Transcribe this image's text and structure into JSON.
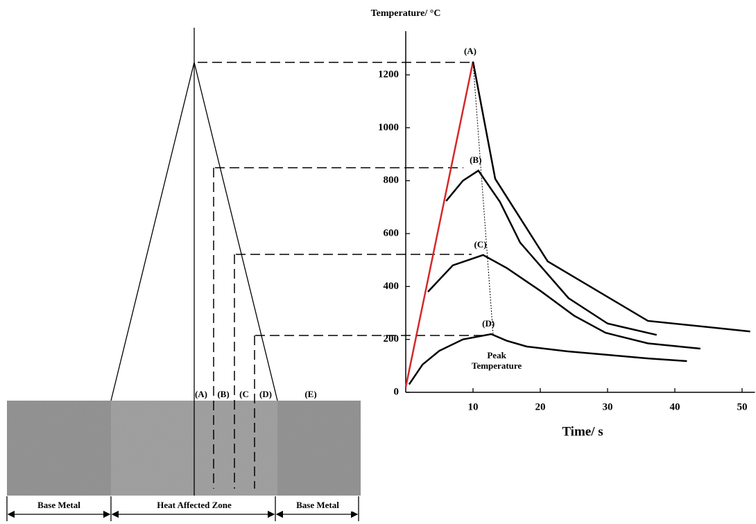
{
  "chart_data": {
    "type": "line",
    "ylabel": "Temperature/ °C",
    "xlabel": "Time/ s",
    "xlim": [
      0,
      51.5
    ],
    "ylim": [
      0,
      1365
    ],
    "xticks": [
      10,
      20,
      30,
      40,
      50
    ],
    "yticks": [
      0,
      200,
      400,
      600,
      800,
      1000,
      1200
    ],
    "heating_color": "#d62728",
    "series": [
      {
        "name": "(A)",
        "color": "#000000",
        "x": [
          0,
          10,
          13.3,
          21.1,
          36,
          51.2
        ],
        "values": [
          20,
          1250,
          807,
          495,
          270,
          230
        ]
      },
      {
        "name": "(B)",
        "color": "#000000",
        "x": [
          6,
          8.5,
          10.8,
          14,
          17,
          24.2,
          30,
          37.3
        ],
        "values": [
          723,
          800,
          838,
          720,
          566,
          356,
          260,
          217
        ]
      },
      {
        "name": "(C)",
        "color": "#000000",
        "x": [
          3.3,
          7,
          11.5,
          15,
          20.1,
          25,
          29.7,
          36,
          43.8
        ],
        "values": [
          380,
          480,
          519,
          470,
          382,
          290,
          225,
          185,
          165
        ]
      },
      {
        "name": "(D)",
        "color": "#000000",
        "x": [
          0.5,
          2.5,
          5,
          8.5,
          12.7,
          15,
          18,
          24,
          30.2,
          36,
          41.8
        ],
        "values": [
          30,
          105,
          157,
          200,
          220,
          195,
          173,
          155,
          141,
          128,
          118
        ]
      }
    ],
    "annotation": {
      "text": [
        "Peak",
        "Temperature"
      ],
      "x": [
        10,
        13
      ],
      "values": [
        1250,
        215
      ]
    }
  },
  "diagram": {
    "zone_marks": [
      "(A)",
      "(B)",
      "(C",
      "(D)",
      "(E)"
    ],
    "regions": [
      "Base Metal",
      "Heat Affected Zone",
      "Base Metal"
    ]
  }
}
